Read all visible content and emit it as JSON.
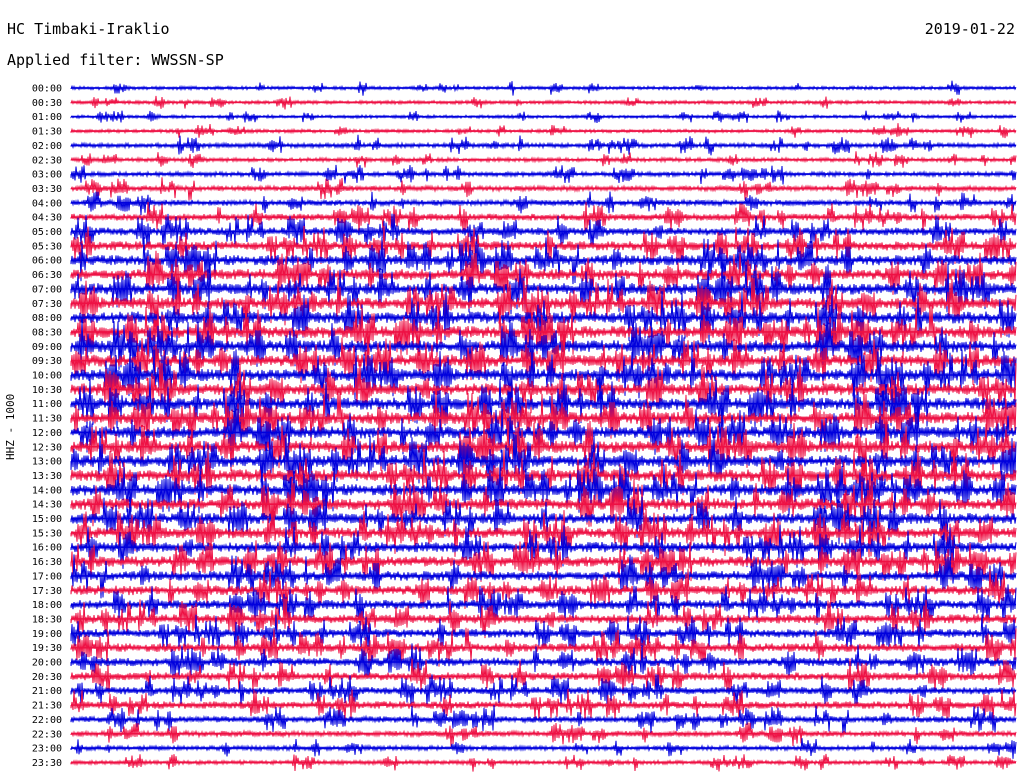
{
  "header": {
    "station": "HC Timbaki-Iraklio",
    "date": "2019-01-22",
    "filter": "Applied filter: WWSSN-SP",
    "channel": "HHZ - 1000"
  },
  "chart_data": {
    "type": "line",
    "title": "HC Timbaki-Iraklio",
    "date": "2019-01-22",
    "filter": "WWSSN-SP",
    "ylabel": "HHZ - 1000",
    "trace_colors": [
      "#0000dd",
      "#ee1144"
    ],
    "rows": [
      {
        "label": "00:00",
        "activity": 0.15,
        "color": "#0000dd"
      },
      {
        "label": "00:30",
        "activity": 0.15,
        "color": "#ee1144"
      },
      {
        "label": "01:00",
        "activity": 0.12,
        "color": "#0000dd"
      },
      {
        "label": "01:30",
        "activity": 0.15,
        "color": "#ee1144"
      },
      {
        "label": "02:00",
        "activity": 0.25,
        "color": "#0000dd"
      },
      {
        "label": "02:30",
        "activity": 0.2,
        "color": "#ee1144"
      },
      {
        "label": "03:00",
        "activity": 0.25,
        "color": "#0000dd"
      },
      {
        "label": "03:30",
        "activity": 0.3,
        "color": "#ee1144"
      },
      {
        "label": "04:00",
        "activity": 0.35,
        "color": "#0000dd"
      },
      {
        "label": "04:30",
        "activity": 0.45,
        "color": "#ee1144"
      },
      {
        "label": "05:00",
        "activity": 0.55,
        "color": "#0000dd"
      },
      {
        "label": "05:30",
        "activity": 0.65,
        "color": "#ee1144"
      },
      {
        "label": "06:00",
        "activity": 0.75,
        "color": "#0000dd"
      },
      {
        "label": "06:30",
        "activity": 0.8,
        "color": "#ee1144"
      },
      {
        "label": "07:00",
        "activity": 0.85,
        "color": "#0000dd"
      },
      {
        "label": "07:30",
        "activity": 0.85,
        "color": "#ee1144"
      },
      {
        "label": "08:00",
        "activity": 0.9,
        "color": "#0000dd"
      },
      {
        "label": "08:30",
        "activity": 0.9,
        "color": "#ee1144"
      },
      {
        "label": "09:00",
        "activity": 0.9,
        "color": "#0000dd"
      },
      {
        "label": "09:30",
        "activity": 0.9,
        "color": "#ee1144"
      },
      {
        "label": "10:00",
        "activity": 0.9,
        "color": "#0000dd"
      },
      {
        "label": "10:30",
        "activity": 0.9,
        "color": "#ee1144"
      },
      {
        "label": "11:00",
        "activity": 0.9,
        "color": "#0000dd"
      },
      {
        "label": "11:30",
        "activity": 0.9,
        "color": "#ee1144"
      },
      {
        "label": "12:00",
        "activity": 0.9,
        "color": "#0000dd"
      },
      {
        "label": "12:30",
        "activity": 0.9,
        "color": "#ee1144"
      },
      {
        "label": "13:00",
        "activity": 0.9,
        "color": "#0000dd"
      },
      {
        "label": "13:30",
        "activity": 0.9,
        "color": "#ee1144"
      },
      {
        "label": "14:00",
        "activity": 0.85,
        "color": "#0000dd"
      },
      {
        "label": "14:30",
        "activity": 0.85,
        "color": "#ee1144"
      },
      {
        "label": "15:00",
        "activity": 0.8,
        "color": "#0000dd"
      },
      {
        "label": "15:30",
        "activity": 0.8,
        "color": "#ee1144"
      },
      {
        "label": "16:00",
        "activity": 0.75,
        "color": "#0000dd"
      },
      {
        "label": "16:30",
        "activity": 0.75,
        "color": "#ee1144"
      },
      {
        "label": "17:00",
        "activity": 0.7,
        "color": "#0000dd"
      },
      {
        "label": "17:30",
        "activity": 0.7,
        "color": "#ee1144"
      },
      {
        "label": "18:00",
        "activity": 0.65,
        "color": "#0000dd"
      },
      {
        "label": "18:30",
        "activity": 0.65,
        "color": "#ee1144"
      },
      {
        "label": "19:00",
        "activity": 0.6,
        "color": "#0000dd"
      },
      {
        "label": "19:30",
        "activity": 0.6,
        "color": "#ee1144"
      },
      {
        "label": "20:00",
        "activity": 0.6,
        "color": "#0000dd"
      },
      {
        "label": "20:30",
        "activity": 0.55,
        "color": "#ee1144"
      },
      {
        "label": "21:00",
        "activity": 0.5,
        "color": "#0000dd"
      },
      {
        "label": "21:30",
        "activity": 0.5,
        "color": "#ee1144"
      },
      {
        "label": "22:00",
        "activity": 0.4,
        "color": "#0000dd"
      },
      {
        "label": "22:30",
        "activity": 0.35,
        "color": "#ee1144"
      },
      {
        "label": "23:00",
        "activity": 0.25,
        "color": "#0000dd"
      },
      {
        "label": "23:30",
        "activity": 0.2,
        "color": "#ee1144"
      }
    ]
  }
}
